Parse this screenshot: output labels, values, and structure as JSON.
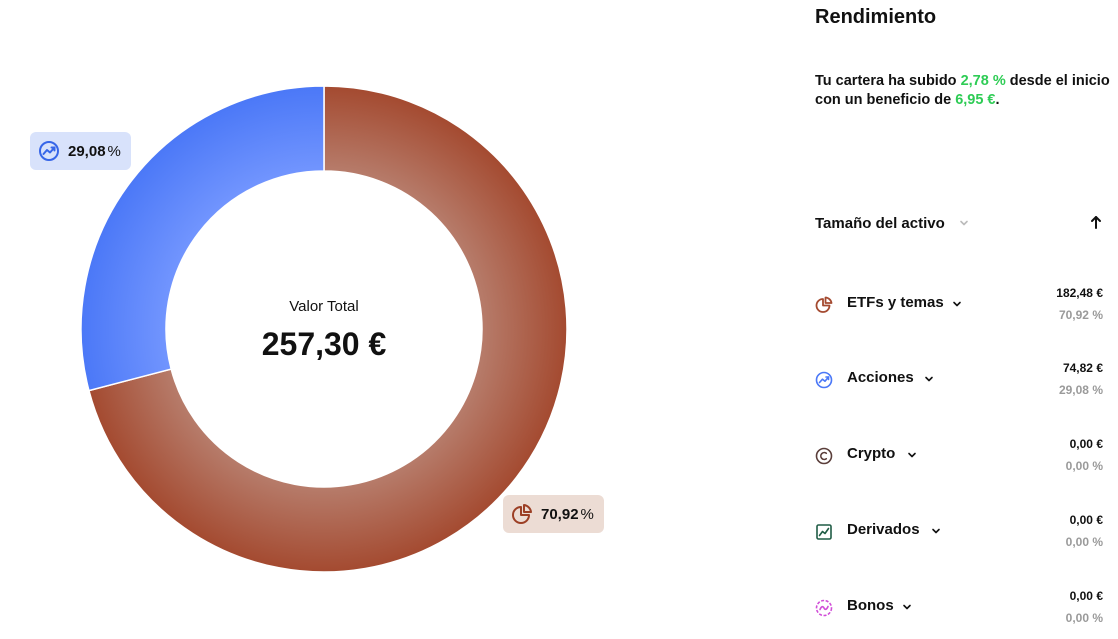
{
  "chart_data": {
    "type": "pie",
    "style": "donut",
    "center_label": "Valor Total",
    "center_value": "257,30 €",
    "slices": [
      {
        "name": "ETFs y temas",
        "value": 70.92,
        "label": "70,92",
        "color": "#a44a30"
      },
      {
        "name": "Acciones",
        "value": 29.08,
        "label": "29,08",
        "color": "#4b78f7"
      }
    ],
    "percent_symbol": "%"
  },
  "panel": {
    "title": "Rendimiento",
    "performance": {
      "prefix": "Tu cartera ha subido ",
      "change_pct": "2,78 %",
      "middle": " desde el inicio con un beneficio de ",
      "profit": "6,95 €",
      "suffix": "."
    },
    "sort": {
      "label": "Tamaño del activo",
      "chevron_icon": "chevron-down-icon",
      "arrow_icon": "arrow-up-icon"
    },
    "assets": [
      {
        "name": "ETFs y temas",
        "value": "182,48 €",
        "percent": "70,92 %",
        "icon": "pie-chart-icon",
        "color": "#a44a30"
      },
      {
        "name": "Acciones",
        "value": "74,82 €",
        "percent": "29,08 %",
        "icon": "stock-trend-icon",
        "color": "#4b78f7"
      },
      {
        "name": "Crypto",
        "value": "0,00 €",
        "percent": "0,00 %",
        "icon": "crypto-icon",
        "color": "#5a3e3a"
      },
      {
        "name": "Derivados",
        "value": "0,00 €",
        "percent": "0,00 %",
        "icon": "derivatives-chart-icon",
        "color": "#1f5c45"
      },
      {
        "name": "Bonos",
        "value": "0,00 €",
        "percent": "0,00 %",
        "icon": "bonds-icon",
        "color": "#d14fd8"
      }
    ]
  },
  "colors": {
    "positive": "#2ecc55",
    "muted": "#9a9a9a"
  }
}
